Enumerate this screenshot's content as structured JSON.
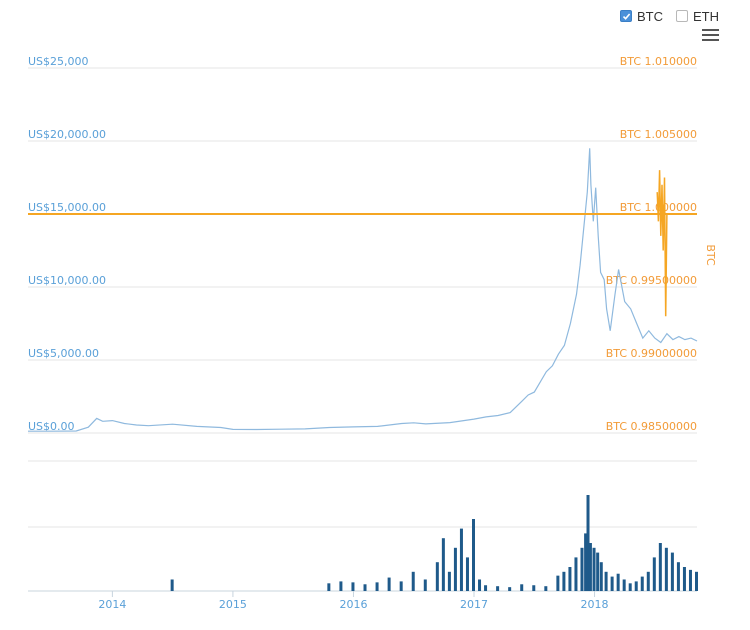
{
  "legend": {
    "items": [
      {
        "label": "BTC",
        "checked": true
      },
      {
        "label": "ETH",
        "checked": false
      }
    ]
  },
  "menu_icon": "hamburger-menu-icon",
  "colors": {
    "price_line": "#8fb9de",
    "price_axis": "#5aa0d8",
    "btc_axis": "#f29b38",
    "btc_series": "#f5a623",
    "volume": "#1f5a8a",
    "grid": "#e6e6e6"
  },
  "chart_data": [
    {
      "type": "line",
      "title": "",
      "xlabel": "",
      "ylabel": "",
      "y_axis_left": {
        "ticks": [
          "US$0.00",
          "US$5,000.00",
          "US$10,000.00",
          "US$15,000.00",
          "US$20,000.00",
          "US$25,000"
        ],
        "range": [
          0,
          25000
        ]
      },
      "y_axis_right": {
        "label": "BTC",
        "ticks": [
          "BTC 0.98500000",
          "BTC 0.99000000",
          "BTC 0.99500000",
          "BTC 1.000000",
          "BTC 1.005000",
          "BTC 1.010000"
        ],
        "range": [
          0.985,
          1.01
        ]
      },
      "x_ticks": [
        "2014",
        "2015",
        "2016",
        "2017",
        "2018"
      ],
      "x_range": [
        2013.3,
        2018.85
      ],
      "grid": true,
      "series": [
        {
          "axis": "left",
          "x": [
            2013.3,
            2013.5,
            2013.7,
            2013.8,
            2013.87,
            2013.92,
            2014.0,
            2014.1,
            2014.2,
            2014.3,
            2014.5,
            2014.7,
            2014.9,
            2015.0,
            2015.2,
            2015.4,
            2015.6,
            2015.8,
            2016.0,
            2016.2,
            2016.4,
            2016.5,
            2016.6,
            2016.8,
            2017.0,
            2017.1,
            2017.2,
            2017.3,
            2017.4,
            2017.45,
            2017.5,
            2017.55,
            2017.6,
            2017.65,
            2017.7,
            2017.75,
            2017.8,
            2017.85,
            2017.88,
            2017.91,
            2017.94,
            2017.96,
            2017.97,
            2017.99,
            2018.01,
            2018.03,
            2018.05,
            2018.08,
            2018.1,
            2018.13,
            2018.17,
            2018.2,
            2018.25,
            2018.3,
            2018.35,
            2018.4,
            2018.45,
            2018.5,
            2018.55,
            2018.6,
            2018.65,
            2018.7,
            2018.75,
            2018.8,
            2018.85
          ],
          "y": [
            120,
            120,
            140,
            400,
            1000,
            800,
            850,
            650,
            550,
            500,
            600,
            450,
            380,
            250,
            240,
            260,
            280,
            380,
            420,
            450,
            650,
            700,
            620,
            710,
            950,
            1100,
            1200,
            1400,
            2200,
            2600,
            2800,
            3500,
            4200,
            4600,
            5400,
            6000,
            7500,
            9500,
            11500,
            14000,
            16500,
            19500,
            17000,
            14500,
            16800,
            13500,
            11000,
            10500,
            8500,
            7000,
            9500,
            11200,
            9000,
            8500,
            7500,
            6500,
            7000,
            6500,
            6200,
            6800,
            6400,
            6600,
            6400,
            6500,
            6300
          ]
        },
        {
          "axis": "right",
          "x": [
            2018.52,
            2018.53,
            2018.54,
            2018.55,
            2018.56,
            2018.57,
            2018.58,
            2018.59,
            2018.6
          ],
          "y": [
            1.0015,
            0.9995,
            1.003,
            0.9985,
            1.002,
            0.9975,
            1.0025,
            0.993,
            1.0
          ]
        }
      ]
    },
    {
      "type": "bar",
      "title": "",
      "xlabel": "",
      "ylabel": "",
      "x_ticks": [
        "2014",
        "2015",
        "2016",
        "2017",
        "2018"
      ],
      "x_range": [
        2013.3,
        2018.85
      ],
      "grid": true,
      "series": [
        {
          "x": [
            2014.5,
            2015.8,
            2015.9,
            2016.0,
            2016.1,
            2016.2,
            2016.3,
            2016.4,
            2016.5,
            2016.6,
            2016.7,
            2016.75,
            2016.8,
            2016.85,
            2016.9,
            2016.95,
            2017.0,
            2017.05,
            2017.1,
            2017.2,
            2017.3,
            2017.4,
            2017.5,
            2017.6,
            2017.7,
            2017.75,
            2017.8,
            2017.85,
            2017.9,
            2017.93,
            2017.95,
            2017.97,
            2018.0,
            2018.03,
            2018.06,
            2018.1,
            2018.15,
            2018.2,
            2018.25,
            2018.3,
            2018.35,
            2018.4,
            2018.45,
            2018.5,
            2018.55,
            2018.6,
            2018.65,
            2018.7,
            2018.75,
            2018.8,
            2018.85
          ],
          "values": [
            12,
            8,
            10,
            9,
            7,
            9,
            14,
            10,
            20,
            12,
            30,
            55,
            20,
            45,
            65,
            35,
            75,
            12,
            6,
            5,
            4,
            7,
            6,
            5,
            16,
            20,
            25,
            35,
            45,
            60,
            100,
            50,
            45,
            40,
            30,
            20,
            15,
            18,
            12,
            8,
            10,
            15,
            20,
            35,
            50,
            45,
            40,
            30,
            25,
            22,
            20
          ]
        }
      ]
    }
  ]
}
